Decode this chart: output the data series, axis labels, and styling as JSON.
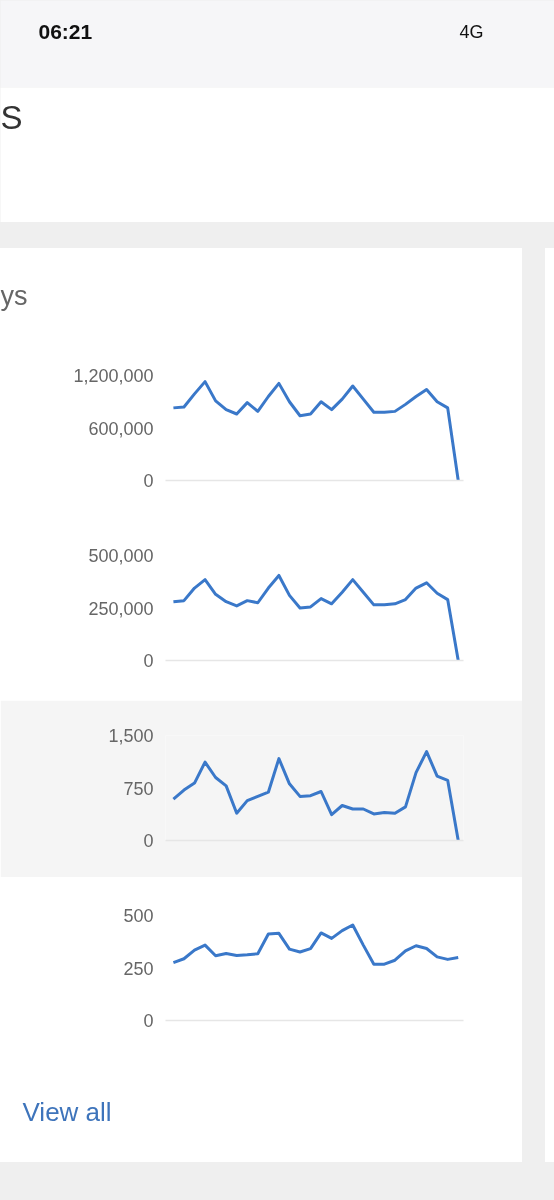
{
  "chart_data": [
    {
      "type": "other",
      "title": "S",
      "annotations": [
        "06:21",
        "4G"
      ]
    },
    {
      "type": "line",
      "title": "ys",
      "categories": [
        null,
        null,
        null,
        null,
        null,
        null,
        null,
        null,
        null,
        null,
        null,
        null,
        null,
        null,
        null,
        null,
        null,
        null,
        null,
        null,
        null,
        null,
        null,
        null,
        null,
        null,
        null,
        null
      ],
      "series": [
        {
          "color": "#3a78c9",
          "values": [
            830000,
            840000,
            990000,
            1130000,
            910000,
            810000,
            760000,
            890000,
            790000,
            960000,
            1110000,
            900000,
            740000,
            760000,
            900000,
            810000,
            930000,
            1080000,
            930000,
            780000,
            780000,
            790000,
            870000,
            960000,
            1040000,
            900000,
            830000,
            0
          ]
        }
      ],
      "ylim": [
        0,
        1200000
      ],
      "yticks": [
        0,
        {
          "value": 600000,
          "label": "600,000"
        },
        {
          "value": 1200000,
          "label": "1,200,000"
        }
      ]
    },
    {
      "type": "line",
      "categories": [
        null,
        null,
        null,
        null,
        null,
        null,
        null,
        null,
        null,
        null,
        null,
        null,
        null,
        null,
        null,
        null,
        null,
        null,
        null,
        null,
        null,
        null,
        null,
        null,
        null,
        null,
        null,
        null
      ],
      "series": [
        {
          "color": "#3a78c9",
          "values": [
            280000,
            285000,
            345000,
            385000,
            315000,
            280000,
            260000,
            285000,
            275000,
            345000,
            405000,
            310000,
            250000,
            255000,
            295000,
            270000,
            325000,
            385000,
            325000,
            265000,
            265000,
            270000,
            290000,
            345000,
            370000,
            320000,
            290000,
            0
          ]
        }
      ],
      "ylim": [
        0,
        500000
      ],
      "yticks": [
        0,
        {
          "value": 250000,
          "label": "250,000"
        },
        {
          "value": 500000,
          "label": "500,000"
        }
      ]
    },
    {
      "type": "line",
      "categories": [
        null,
        null,
        null,
        null,
        null,
        null,
        null,
        null,
        null,
        null,
        null,
        null,
        null,
        null,
        null,
        null,
        null,
        null,
        null,
        null,
        null,
        null,
        null,
        null,
        null,
        null,
        null,
        null
      ],
      "series": [
        {
          "color": "#3a78c9",
          "values": [
            590,
            720,
            820,
            1120,
            900,
            780,
            390,
            570,
            630,
            690,
            1170,
            810,
            630,
            640,
            700,
            370,
            500,
            450,
            450,
            380,
            400,
            390,
            480,
            970,
            1270,
            920,
            860,
            0
          ]
        }
      ],
      "ylim": [
        0,
        1500
      ],
      "yticks": [
        0,
        750,
        {
          "value": 1500,
          "label": "1,500"
        }
      ]
    },
    {
      "type": "line",
      "categories": [
        null,
        null,
        null,
        null,
        null,
        null,
        null,
        null,
        null,
        null,
        null,
        null,
        null,
        null,
        null,
        null,
        null,
        null,
        null,
        null,
        null,
        null,
        null,
        null,
        null,
        null,
        null,
        null
      ],
      "series": [
        {
          "color": "#3a78c9",
          "values": [
            276,
            294,
            335,
            359,
            308,
            319,
            310,
            313,
            318,
            412,
            415,
            340,
            326,
            342,
            417,
            391,
            428,
            455,
            359,
            268,
            268,
            287,
            332,
            356,
            343,
            303,
            291,
            300
          ]
        }
      ],
      "ylim": [
        0,
        500
      ],
      "yticks": [
        0,
        250,
        500
      ],
      "annotations": [
        "View all"
      ]
    }
  ]
}
